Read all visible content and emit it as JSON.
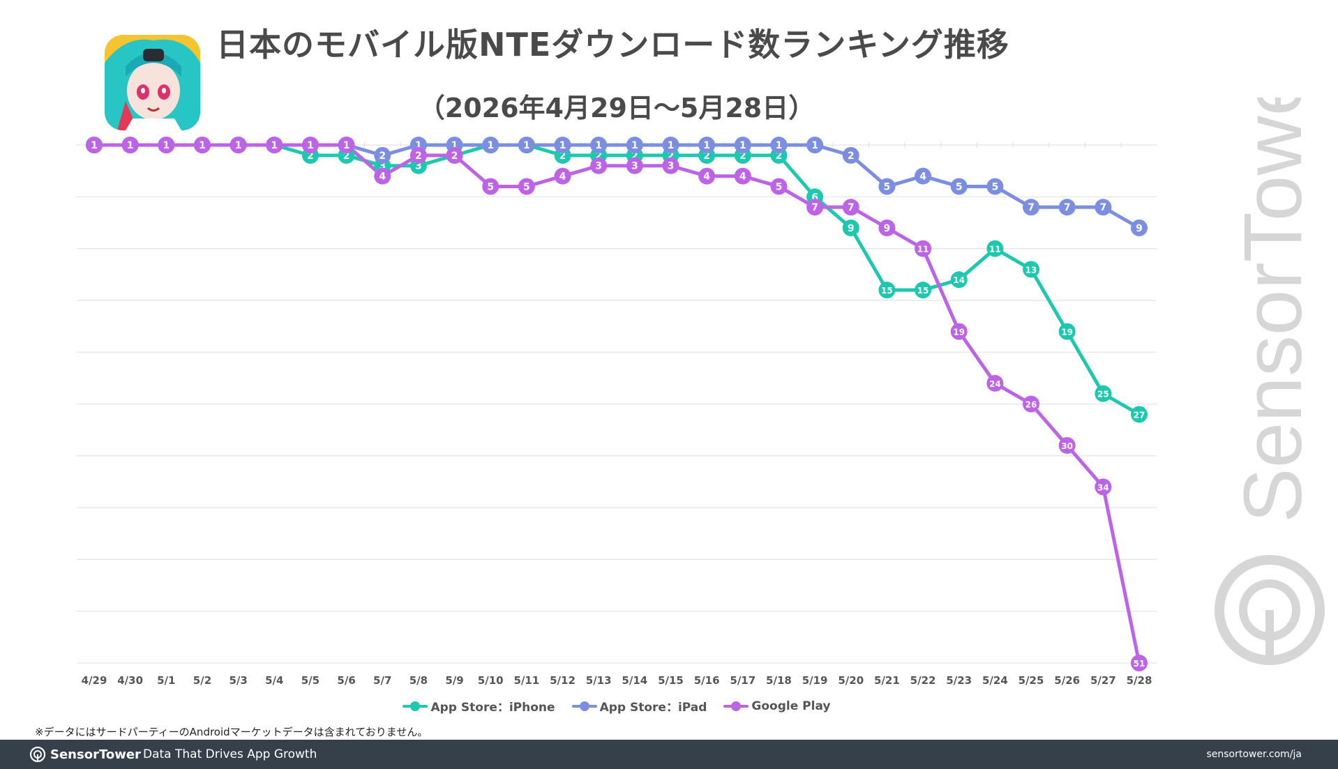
{
  "title": "日本のモバイル版NTEダウンロード数ランキング推移",
  "subtitle": "（2026年4月29日〜5月28日）",
  "note": "※データにはサードパーティーのAndroidマーケットデータは含まれておりません。",
  "footer": {
    "brand": "SensorTower",
    "tagline": "Data That Drives App Growth",
    "url": "sensortower.com/ja"
  },
  "watermark": "SensorTower",
  "colors": {
    "iphone": "#1ec8ae",
    "ipad": "#7b8ee0",
    "google": "#bd63e6",
    "text": "#4a4a4a",
    "footer_bg": "#36404a"
  },
  "chart_data": {
    "type": "line",
    "title": "日本のモバイル版NTEダウンロード数ランキング推移",
    "subtitle": "（2026年4月29日〜5月28日）",
    "xlabel": "",
    "ylabel": "",
    "y_reversed": true,
    "ylim": [
      1,
      51
    ],
    "grid": true,
    "legend_position": "bottom",
    "categories": [
      "4/29",
      "4/30",
      "5/1",
      "5/2",
      "5/3",
      "5/4",
      "5/5",
      "5/6",
      "5/7",
      "5/8",
      "5/9",
      "5/10",
      "5/11",
      "5/12",
      "5/13",
      "5/14",
      "5/15",
      "5/16",
      "5/17",
      "5/18",
      "5/19",
      "5/20",
      "5/21",
      "5/22",
      "5/23",
      "5/24",
      "5/25",
      "5/26",
      "5/27",
      "5/28"
    ],
    "series": [
      {
        "name": "App Store：iPhone",
        "color": "#1ec8ae",
        "values": [
          1,
          1,
          1,
          1,
          1,
          1,
          2,
          2,
          3,
          3,
          2,
          1,
          1,
          2,
          2,
          2,
          2,
          2,
          2,
          2,
          6,
          9,
          15,
          15,
          14,
          11,
          13,
          19,
          25,
          27
        ]
      },
      {
        "name": "App Store：iPad",
        "color": "#7b8ee0",
        "values": [
          1,
          1,
          1,
          1,
          1,
          1,
          1,
          1,
          2,
          1,
          1,
          1,
          1,
          1,
          1,
          1,
          1,
          1,
          1,
          1,
          1,
          2,
          5,
          4,
          5,
          5,
          7,
          7,
          7,
          9
        ]
      },
      {
        "name": "Google Play",
        "color": "#bd63e6",
        "values": [
          1,
          1,
          1,
          1,
          1,
          1,
          1,
          1,
          4,
          2,
          2,
          5,
          5,
          4,
          3,
          3,
          3,
          4,
          4,
          5,
          7,
          7,
          9,
          11,
          19,
          24,
          26,
          30,
          34,
          51
        ]
      }
    ]
  }
}
